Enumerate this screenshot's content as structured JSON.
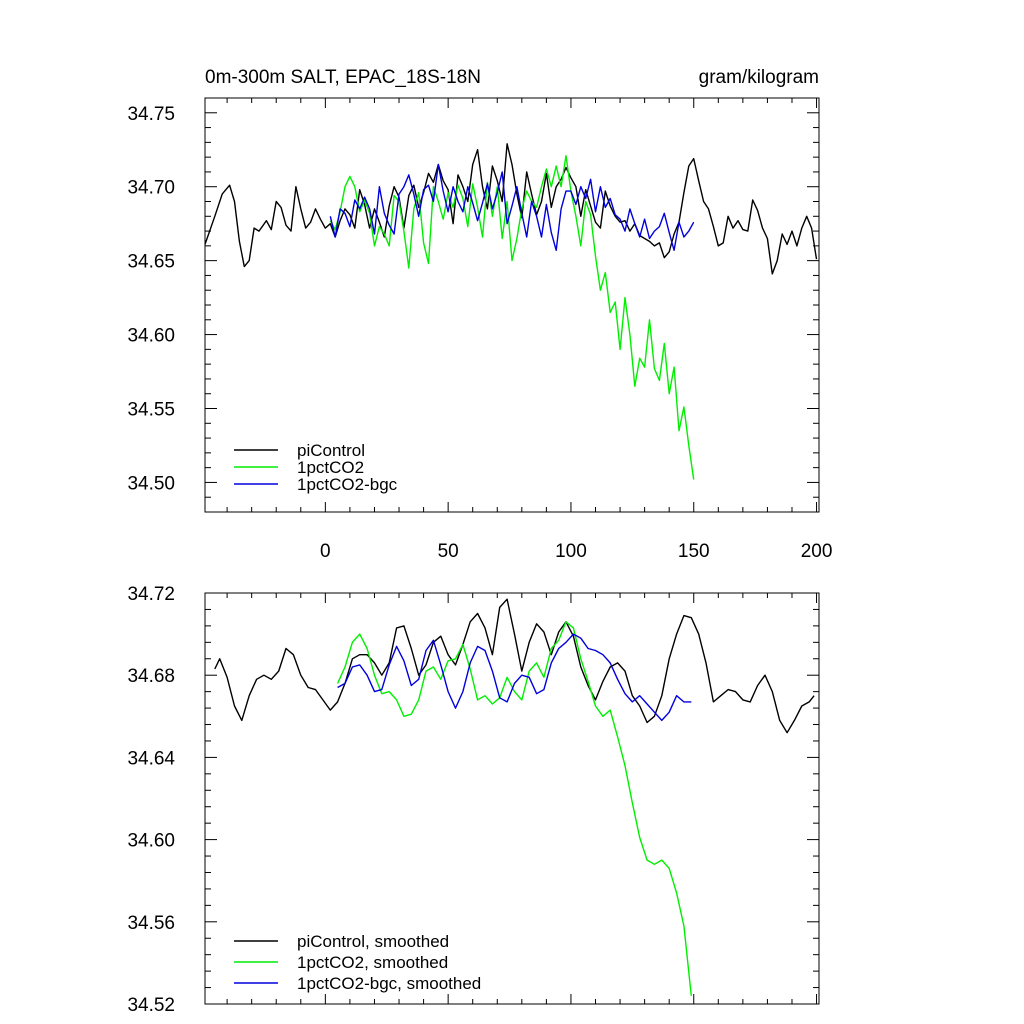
{
  "figure": {
    "title_left": "0m-300m SALT, EPAC_18S-18N",
    "title_right": "gram/kilogram"
  },
  "colors": {
    "piControl": "#000000",
    "1pctCO2": "#00ee00",
    "1pctCO2-bgc": "#0000dd",
    "axis": "#000000"
  },
  "chart_data": [
    {
      "type": "line",
      "title": "0m-300m SALT, EPAC_18S-18N",
      "units": "gram/kilogram",
      "xlim": [
        -49,
        201
      ],
      "ylim": [
        34.48,
        34.76
      ],
      "x_ticks": [
        0,
        50,
        100,
        150,
        200
      ],
      "y_ticks": [
        34.5,
        34.55,
        34.6,
        34.65,
        34.7,
        34.75
      ],
      "y_tick_labels": [
        "34.50",
        "34.55",
        "34.60",
        "34.65",
        "34.70",
        "34.75"
      ],
      "legend": [
        "piControl",
        "1pctCO2",
        "1pctCO2-bgc"
      ],
      "legend_location": "bottom-left",
      "series": [
        {
          "name": "piControl",
          "color": "#000000",
          "x": [
            -49,
            -45,
            -42,
            -39,
            -37,
            -35,
            -33,
            -31,
            -29,
            -27,
            -24,
            -22,
            -20,
            -18,
            -16,
            -14,
            -12,
            -10,
            -8,
            -6,
            -4,
            -2,
            0,
            2,
            4,
            6,
            8,
            10,
            12,
            14,
            16,
            18,
            20,
            22,
            24,
            26,
            28,
            30,
            32,
            34,
            36,
            38,
            40,
            42,
            44,
            46,
            48,
            50,
            52,
            54,
            56,
            58,
            60,
            62,
            64,
            66,
            68,
            70,
            72,
            74,
            76,
            78,
            80,
            82,
            84,
            86,
            88,
            90,
            92,
            94,
            96,
            98,
            100,
            102,
            104,
            106,
            108,
            110,
            112,
            114,
            116,
            118,
            120,
            122,
            124,
            126,
            128,
            130,
            132,
            134,
            136,
            138,
            140,
            142,
            144,
            146,
            148,
            150,
            152,
            154,
            156,
            158,
            160,
            162,
            164,
            166,
            168,
            170,
            172,
            174,
            176,
            178,
            180,
            182,
            184,
            186,
            188,
            190,
            192,
            194,
            196,
            198,
            200
          ],
          "values": [
            34.661,
            34.68,
            34.695,
            34.701,
            34.69,
            34.663,
            34.646,
            34.65,
            34.672,
            34.67,
            34.677,
            34.671,
            34.69,
            34.686,
            34.674,
            34.67,
            34.7,
            34.685,
            34.672,
            34.676,
            34.685,
            34.678,
            34.672,
            34.675,
            34.666,
            34.677,
            34.685,
            34.681,
            34.672,
            34.698,
            34.688,
            34.672,
            34.685,
            34.676,
            34.666,
            34.687,
            34.7,
            34.693,
            34.672,
            34.694,
            34.701,
            34.686,
            34.696,
            34.709,
            34.703,
            34.715,
            34.704,
            34.698,
            34.675,
            34.708,
            34.7,
            34.69,
            34.715,
            34.725,
            34.7,
            34.685,
            34.714,
            34.704,
            34.69,
            34.729,
            34.715,
            34.695,
            34.679,
            34.71,
            34.695,
            34.681,
            34.69,
            34.709,
            34.686,
            34.7,
            34.705,
            34.713,
            34.706,
            34.7,
            34.68,
            34.698,
            34.687,
            34.676,
            34.672,
            34.697,
            34.687,
            34.68,
            34.676,
            34.677,
            34.67,
            34.675,
            34.667,
            34.665,
            34.663,
            34.66,
            34.662,
            34.652,
            34.656,
            34.668,
            34.676,
            34.696,
            34.714,
            34.719,
            34.704,
            34.69,
            34.685,
            34.673,
            34.66,
            34.662,
            34.68,
            34.672,
            34.677,
            34.671,
            34.67,
            34.691,
            34.684,
            34.672,
            34.665,
            34.641,
            34.65,
            34.668,
            34.661,
            34.67,
            34.66,
            34.672,
            34.68,
            34.672,
            34.651
          ]
        },
        {
          "name": "1pctCO2",
          "color": "#00ee00",
          "x": [
            2,
            4,
            6,
            8,
            10,
            12,
            14,
            16,
            18,
            20,
            22,
            24,
            26,
            28,
            30,
            32,
            34,
            36,
            38,
            40,
            42,
            44,
            46,
            48,
            50,
            52,
            54,
            56,
            58,
            60,
            62,
            64,
            66,
            68,
            70,
            72,
            74,
            76,
            78,
            80,
            82,
            84,
            86,
            88,
            90,
            92,
            94,
            96,
            98,
            100,
            102,
            104,
            106,
            108,
            110,
            112,
            114,
            116,
            118,
            120,
            122,
            124,
            126,
            128,
            130,
            132,
            134,
            136,
            138,
            140,
            142,
            144,
            146,
            148,
            150
          ],
          "values": [
            34.677,
            34.671,
            34.683,
            34.7,
            34.707,
            34.7,
            34.683,
            34.691,
            34.682,
            34.66,
            34.673,
            34.668,
            34.66,
            34.694,
            34.69,
            34.67,
            34.645,
            34.685,
            34.696,
            34.662,
            34.648,
            34.7,
            34.69,
            34.678,
            34.696,
            34.686,
            34.701,
            34.692,
            34.673,
            34.702,
            34.686,
            34.666,
            34.703,
            34.68,
            34.7,
            34.665,
            34.69,
            34.65,
            34.665,
            34.685,
            34.697,
            34.69,
            34.686,
            34.7,
            34.712,
            34.7,
            34.714,
            34.7,
            34.721,
            34.697,
            34.68,
            34.66,
            34.69,
            34.681,
            34.653,
            34.63,
            34.642,
            34.615,
            34.622,
            34.59,
            34.625,
            34.6,
            34.565,
            34.584,
            34.578,
            34.61,
            34.577,
            34.569,
            34.594,
            34.56,
            34.578,
            34.535,
            34.551,
            34.525,
            34.502
          ]
        },
        {
          "name": "1pctCO2-bgc",
          "color": "#0000dd",
          "x": [
            2,
            4,
            6,
            8,
            10,
            12,
            14,
            16,
            18,
            20,
            22,
            24,
            26,
            28,
            30,
            32,
            34,
            36,
            38,
            40,
            42,
            44,
            46,
            48,
            50,
            52,
            54,
            56,
            58,
            60,
            62,
            64,
            66,
            68,
            70,
            72,
            74,
            76,
            78,
            80,
            82,
            84,
            86,
            88,
            90,
            92,
            94,
            96,
            98,
            100,
            102,
            104,
            106,
            108,
            110,
            112,
            114,
            116,
            118,
            120,
            122,
            124,
            126,
            128,
            130,
            132,
            134,
            136,
            138,
            140,
            142,
            144,
            146,
            148,
            150
          ],
          "values": [
            34.68,
            34.666,
            34.685,
            34.682,
            34.673,
            34.691,
            34.685,
            34.693,
            34.685,
            34.668,
            34.7,
            34.682,
            34.674,
            34.668,
            34.695,
            34.7,
            34.708,
            34.695,
            34.68,
            34.698,
            34.701,
            34.69,
            34.715,
            34.697,
            34.683,
            34.7,
            34.69,
            34.683,
            34.7,
            34.689,
            34.677,
            34.689,
            34.702,
            34.685,
            34.696,
            34.71,
            34.675,
            34.687,
            34.7,
            34.682,
            34.666,
            34.69,
            34.68,
            34.666,
            34.688,
            34.669,
            34.657,
            34.685,
            34.697,
            34.697,
            34.688,
            34.7,
            34.692,
            34.705,
            34.683,
            34.7,
            34.686,
            34.692,
            34.681,
            34.678,
            34.67,
            34.685,
            34.675,
            34.666,
            34.678,
            34.665,
            34.67,
            34.673,
            34.682,
            34.669,
            34.657,
            34.676,
            34.666,
            34.67,
            34.676
          ]
        }
      ]
    },
    {
      "type": "line",
      "title": "",
      "xlim": [
        -49,
        201
      ],
      "ylim": [
        34.52,
        34.72
      ],
      "x_ticks": [
        0,
        50,
        100,
        150,
        200
      ],
      "y_ticks": [
        34.52,
        34.56,
        34.6,
        34.64,
        34.68,
        34.72
      ],
      "y_tick_labels": [
        "34.52",
        "34.56",
        "34.60",
        "34.64",
        "34.68",
        "34.72"
      ],
      "legend": [
        "piControl, smoothed",
        "1pctCO2, smoothed",
        "1pctCO2-bgc, smoothed"
      ],
      "legend_location": "bottom-left",
      "series": [
        {
          "name": "piControl, smoothed",
          "color": "#000000",
          "x": [
            -45,
            -43,
            -40,
            -37,
            -34,
            -31,
            -28,
            -25,
            -22,
            -19,
            -16,
            -13,
            -10,
            -7,
            -4,
            -1,
            2,
            5,
            8,
            11,
            14,
            17,
            20,
            23,
            26,
            29,
            32,
            35,
            38,
            41,
            44,
            47,
            50,
            53,
            56,
            59,
            62,
            65,
            68,
            71,
            74,
            77,
            80,
            83,
            86,
            89,
            92,
            95,
            98,
            101,
            104,
            107,
            110,
            113,
            116,
            119,
            122,
            125,
            128,
            131,
            134,
            137,
            140,
            143,
            146,
            149,
            152,
            155,
            158,
            161,
            164,
            167,
            170,
            173,
            176,
            179,
            182,
            185,
            188,
            191,
            194,
            197,
            199
          ],
          "values": [
            34.683,
            34.688,
            34.679,
            34.665,
            34.658,
            34.67,
            34.678,
            34.68,
            34.678,
            34.682,
            34.693,
            34.69,
            34.68,
            34.674,
            34.673,
            34.668,
            34.663,
            34.667,
            34.676,
            34.688,
            34.69,
            34.69,
            34.686,
            34.68,
            34.686,
            34.703,
            34.704,
            34.693,
            34.68,
            34.685,
            34.696,
            34.699,
            34.69,
            34.685,
            34.695,
            34.706,
            34.71,
            34.703,
            34.69,
            34.713,
            34.717,
            34.7,
            34.682,
            34.696,
            34.705,
            34.701,
            34.69,
            34.701,
            34.706,
            34.699,
            34.684,
            34.675,
            34.668,
            34.677,
            34.684,
            34.686,
            34.682,
            34.67,
            34.665,
            34.657,
            34.66,
            34.67,
            34.688,
            34.7,
            34.709,
            34.708,
            34.7,
            34.686,
            34.667,
            34.67,
            34.673,
            34.672,
            34.668,
            34.667,
            34.675,
            34.68,
            34.672,
            34.658,
            34.652,
            34.658,
            34.665,
            34.667,
            34.67
          ]
        },
        {
          "name": "1pctCO2, smoothed",
          "color": "#00ee00",
          "x": [
            5,
            8,
            11,
            14,
            17,
            20,
            23,
            26,
            29,
            32,
            35,
            38,
            41,
            44,
            47,
            50,
            53,
            56,
            59,
            62,
            65,
            68,
            71,
            74,
            77,
            80,
            83,
            86,
            89,
            92,
            95,
            98,
            101,
            104,
            107,
            110,
            113,
            116,
            119,
            122,
            125,
            128,
            131,
            134,
            137,
            140,
            143,
            146,
            149
          ],
          "values": [
            34.676,
            34.684,
            34.696,
            34.7,
            34.693,
            34.68,
            34.671,
            34.672,
            34.668,
            34.66,
            34.661,
            34.668,
            34.682,
            34.684,
            34.678,
            34.687,
            34.688,
            34.695,
            34.683,
            34.668,
            34.67,
            34.666,
            34.669,
            34.679,
            34.672,
            34.668,
            34.682,
            34.686,
            34.679,
            34.693,
            34.697,
            34.706,
            34.703,
            34.688,
            34.677,
            34.665,
            34.66,
            34.663,
            34.65,
            34.636,
            34.618,
            34.601,
            34.59,
            34.588,
            34.59,
            34.586,
            34.574,
            34.558,
            34.524
          ]
        },
        {
          "name": "1pctCO2-bgc, smoothed",
          "color": "#0000dd",
          "x": [
            5,
            8,
            11,
            14,
            17,
            20,
            23,
            26,
            29,
            32,
            35,
            38,
            41,
            44,
            47,
            50,
            53,
            56,
            59,
            62,
            65,
            68,
            71,
            74,
            77,
            80,
            83,
            86,
            89,
            92,
            95,
            98,
            101,
            104,
            107,
            110,
            113,
            116,
            119,
            122,
            125,
            128,
            131,
            134,
            137,
            140,
            143,
            146,
            149
          ],
          "values": [
            34.674,
            34.676,
            34.684,
            34.685,
            34.68,
            34.672,
            34.673,
            34.685,
            34.694,
            34.687,
            34.675,
            34.678,
            34.692,
            34.697,
            34.685,
            34.672,
            34.664,
            34.672,
            34.686,
            34.694,
            34.692,
            34.682,
            34.669,
            34.667,
            34.676,
            34.68,
            34.679,
            34.671,
            34.673,
            34.686,
            34.693,
            34.696,
            34.7,
            34.698,
            34.693,
            34.692,
            34.69,
            34.686,
            34.678,
            34.671,
            34.667,
            34.67,
            34.666,
            34.662,
            34.658,
            34.662,
            34.67,
            34.667,
            34.667
          ]
        }
      ]
    }
  ]
}
